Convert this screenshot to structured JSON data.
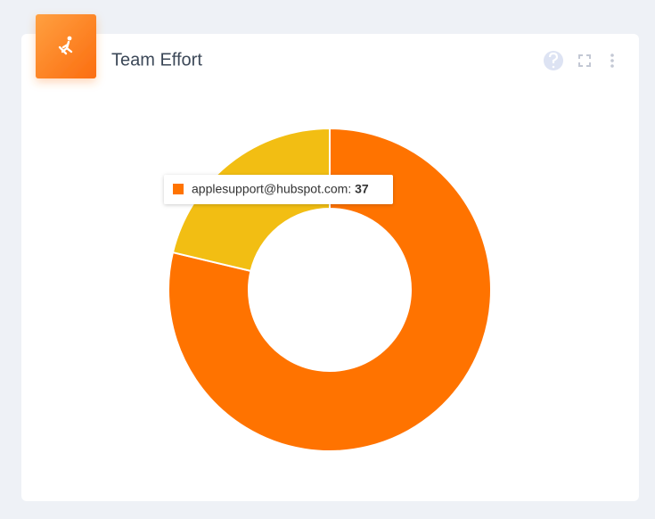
{
  "chart_data": {
    "type": "donut",
    "title": "Team Effort",
    "values": [
      37,
      10
    ],
    "colors": [
      "#ff7300",
      "#f2be13"
    ],
    "tooltip_label": "applesupport@hubspot.com:"
  }
}
